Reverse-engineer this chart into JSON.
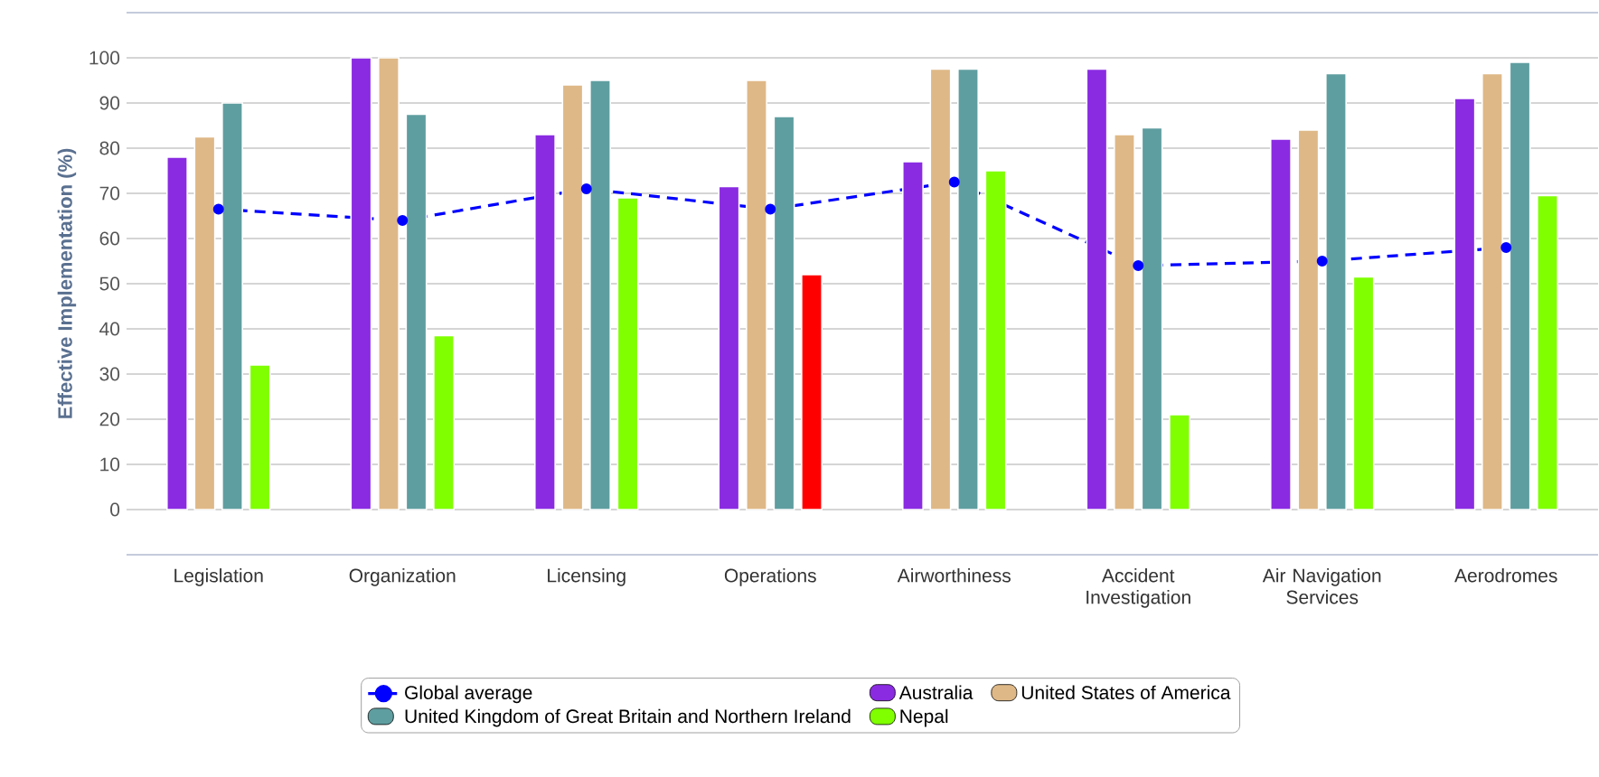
{
  "chart_data": {
    "type": "bar",
    "ylabel": "Effective Implementation (%)",
    "categories": [
      "Legislation",
      "Organization",
      "Licensing",
      "Operations",
      "Airworthiness",
      "Accident Investigation",
      "Air Navigation Services",
      "Aerodromes"
    ],
    "series": [
      {
        "name": "Global average",
        "type": "line",
        "color": "#0000ff",
        "marker": "circle",
        "line_style": "dashed",
        "values": [
          66.5,
          64,
          71,
          66.5,
          72.5,
          54,
          55,
          58
        ]
      },
      {
        "name": "Australia",
        "color": "#8a2be2",
        "values": [
          78,
          100,
          83,
          71.5,
          77,
          97.5,
          82,
          91
        ]
      },
      {
        "name": "United States of America",
        "color": "#deb887",
        "values": [
          82.5,
          100,
          94,
          95,
          97.5,
          83,
          84,
          96.5
        ]
      },
      {
        "name": "United Kingdom of Great Britain and Northern Ireland",
        "color": "#5f9ea0",
        "values": [
          90,
          87.5,
          95,
          87,
          97.5,
          84.5,
          96.5,
          99
        ]
      },
      {
        "name": "Nepal",
        "color": "#7fff00",
        "colors": [
          "#7fff00",
          "#7fff00",
          "#7fff00",
          "#ff0000",
          "#7fff00",
          "#7fff00",
          "#7fff00",
          "#7fff00"
        ],
        "values": [
          32,
          38.5,
          69,
          52,
          75,
          21,
          51.5,
          69.5
        ]
      }
    ],
    "ylim": [
      -10,
      110
    ],
    "yticks": [
      0,
      10,
      20,
      30,
      40,
      50,
      60,
      70,
      80,
      90,
      100
    ],
    "grid": "y",
    "legend": "bottom"
  }
}
